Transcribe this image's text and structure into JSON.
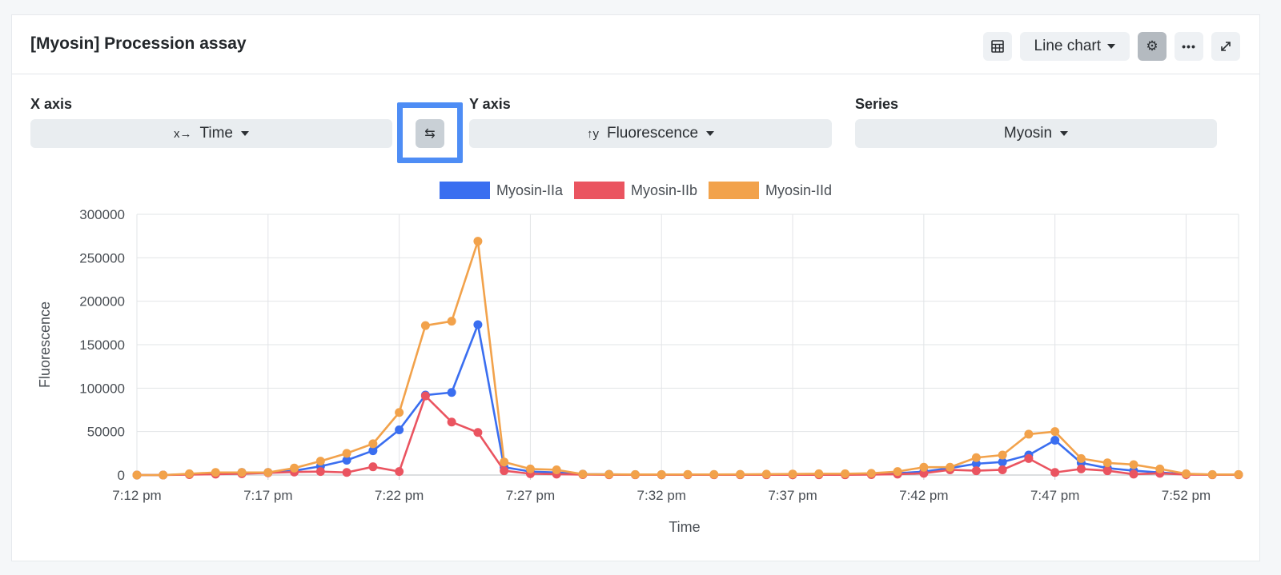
{
  "header": {
    "title": "[Myosin] Procession assay",
    "chart_type_label": "Line chart"
  },
  "controls": {
    "x_axis_label": "X axis",
    "x_axis_value": "Time",
    "y_axis_label": "Y axis",
    "y_axis_value": "Fluorescence",
    "series_label": "Series",
    "series_value": "Myosin"
  },
  "colors": {
    "accent_highlight": "#4e8df5",
    "series_a": "#3a6ef0",
    "series_b": "#ea5460",
    "series_c": "#f2a24b"
  },
  "chart_data": {
    "type": "line",
    "xlabel": "Time",
    "ylabel": "Fluorescence",
    "ylim": [
      0,
      300000
    ],
    "yticks": [
      0,
      50000,
      100000,
      150000,
      200000,
      250000,
      300000
    ],
    "xticks": [
      "7:12 pm",
      "7:17 pm",
      "7:22 pm",
      "7:27 pm",
      "7:32 pm",
      "7:37 pm",
      "7:42 pm",
      "7:47 pm",
      "7:52 pm"
    ],
    "x_minutes_from_7_12": [
      0,
      1,
      2,
      3,
      4,
      5,
      6,
      7,
      8,
      9,
      10,
      11,
      12,
      13,
      14,
      15,
      16,
      17,
      18,
      19,
      20,
      21,
      22,
      23,
      24,
      25,
      26,
      27,
      28,
      29,
      30,
      31,
      32,
      33,
      34,
      35,
      36,
      37,
      38,
      39,
      40,
      41,
      42
    ],
    "grid": true,
    "legend_position": "top",
    "series": [
      {
        "name": "Myosin-IIa",
        "color": "#3a6ef0",
        "values": [
          0,
          0,
          1000,
          2000,
          3000,
          3000,
          5000,
          10000,
          17000,
          28000,
          52000,
          92000,
          95000,
          173000,
          9000,
          4000,
          3000,
          1000,
          800,
          500,
          500,
          500,
          500,
          600,
          700,
          800,
          900,
          1000,
          1500,
          2000,
          4000,
          8000,
          13000,
          15000,
          23000,
          40000,
          14000,
          8000,
          5000,
          3000,
          1000,
          500,
          500
        ]
      },
      {
        "name": "Myosin-IIb",
        "color": "#ea5460",
        "values": [
          0,
          0,
          500,
          1000,
          1500,
          2500,
          3500,
          4000,
          3000,
          9500,
          4000,
          91000,
          61000,
          49000,
          5000,
          1500,
          1000,
          500,
          300,
          300,
          300,
          300,
          300,
          300,
          300,
          300,
          300,
          300,
          500,
          1000,
          2000,
          6000,
          5000,
          6000,
          19000,
          3000,
          7000,
          5000,
          1000,
          2000,
          500,
          300,
          300
        ]
      },
      {
        "name": "Myosin-IId",
        "color": "#f2a24b",
        "values": [
          0,
          0,
          1500,
          3000,
          3000,
          3000,
          8000,
          16000,
          25000,
          36000,
          72000,
          172000,
          177000,
          269000,
          15000,
          7000,
          6000,
          1000,
          800,
          600,
          600,
          700,
          700,
          800,
          1000,
          1200,
          1500,
          1500,
          2000,
          4000,
          9000,
          9000,
          20000,
          23000,
          47000,
          50000,
          19000,
          14000,
          12000,
          7000,
          1500,
          600,
          600
        ]
      }
    ]
  }
}
